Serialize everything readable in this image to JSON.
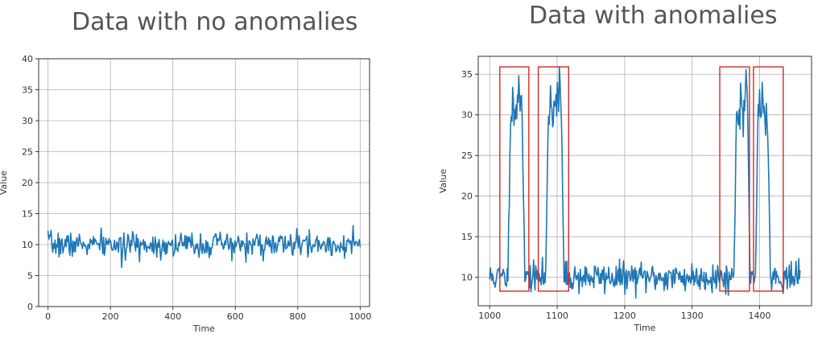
{
  "colors": {
    "line": "#1f77b4",
    "grid": "#b0b0b0",
    "anomaly_box": "#d62728",
    "title": "#555555"
  },
  "chart_data": [
    {
      "type": "line",
      "title": "Data with no anomalies",
      "xlabel": "Time",
      "ylabel": "Value",
      "xlim": [
        -30,
        1030
      ],
      "ylim": [
        0,
        40
      ],
      "xticks": [
        0,
        200,
        400,
        600,
        800,
        1000
      ],
      "yticks": [
        0,
        5,
        10,
        15,
        20,
        25,
        30,
        35,
        40
      ],
      "grid": true,
      "series": [
        {
          "x_start": 0,
          "x_end": 1000,
          "n": 400,
          "baseline": 10,
          "noise": 1.0,
          "seed": 7,
          "points": [
            [
              0,
              12.2
            ],
            [
              236,
              6.3
            ],
            [
              590,
              7.4
            ],
            [
              1000,
              9.6
            ]
          ]
        }
      ]
    },
    {
      "type": "line",
      "title": "Data with anomalies",
      "xlabel": "Time",
      "ylabel": "Value",
      "xlim": [
        983,
        1477
      ],
      "ylim": [
        6.5,
        37.2
      ],
      "xticks": [
        1000,
        1100,
        1200,
        1300,
        1400
      ],
      "yticks": [
        10,
        15,
        20,
        25,
        30,
        35
      ],
      "grid": true,
      "series": [
        {
          "x_start": 1000,
          "x_end": 1460,
          "n": 460,
          "baseline": 10,
          "noise": 0.9,
          "seed": 11,
          "anomalies": [
            {
              "start": 1031,
              "end": 1048,
              "level": 31
            },
            {
              "start": 1087,
              "end": 1106,
              "level": 31
            },
            {
              "start": 1366,
              "end": 1382,
              "level": 31
            },
            {
              "start": 1398,
              "end": 1412,
              "level": 31
            }
          ],
          "points": [
            [
              1043,
              34.8
            ],
            [
              1103,
              35.9
            ],
            [
              1380,
              35.6
            ],
            [
              1404,
              34.0
            ]
          ]
        }
      ],
      "anomaly_boxes": [
        {
          "x0": 1015,
          "x1": 1058,
          "y0": 8.3,
          "y1": 35.9
        },
        {
          "x0": 1072,
          "x1": 1117,
          "y0": 8.3,
          "y1": 35.9
        },
        {
          "x0": 1341,
          "x1": 1385,
          "y0": 8.3,
          "y1": 35.9
        },
        {
          "x0": 1391,
          "x1": 1435,
          "y0": 8.3,
          "y1": 35.9
        }
      ]
    }
  ]
}
